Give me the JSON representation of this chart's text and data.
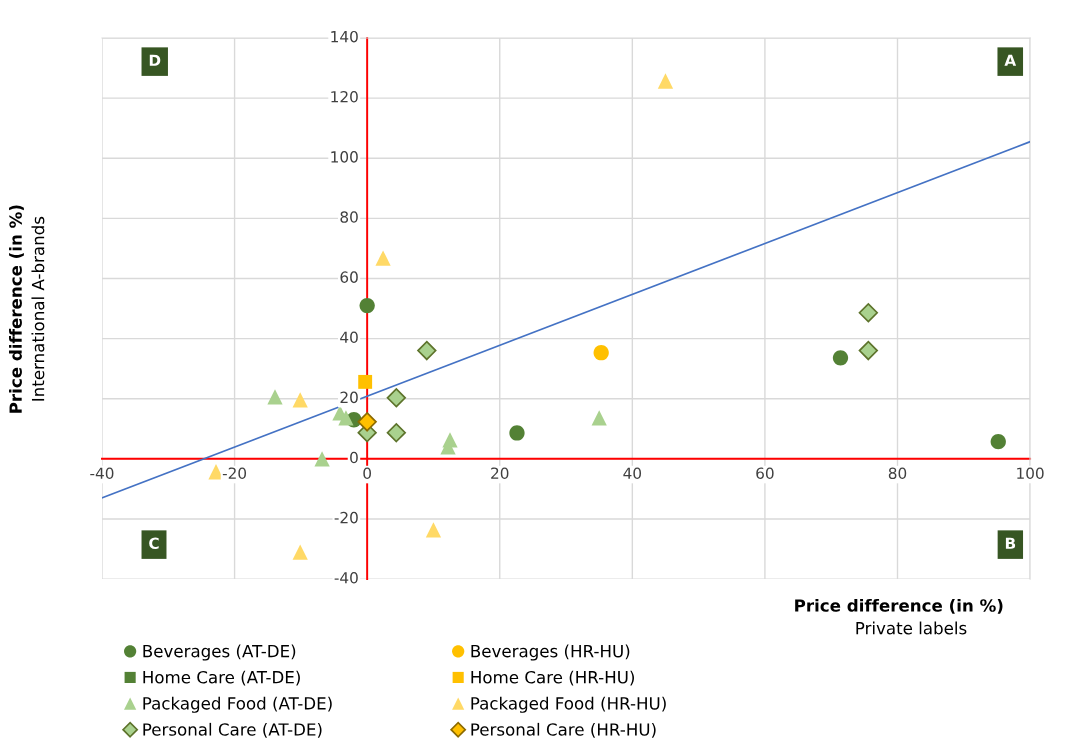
{
  "chart_data": {
    "type": "scatter",
    "xlabel": "Price difference (in %)",
    "ylabel": "Price difference (in %)",
    "annotations": [
      "A",
      "B",
      "C",
      "D",
      "Private labels",
      "International A-brands"
    ],
    "xlim": [
      -40,
      100
    ],
    "xticks": [
      -40,
      -20,
      0,
      20,
      40,
      60,
      80,
      100
    ],
    "ylim": [
      -40,
      140
    ],
    "yticks": [
      -40,
      -20,
      0,
      20,
      40,
      60,
      80,
      100,
      120,
      140
    ],
    "grid": true,
    "legend": "bottom",
    "series": [
      {
        "name": "Beverages (AT-DE)",
        "color": "#538135",
        "marker": "circle",
        "x": [
          0,
          -2,
          22.6,
          71.4,
          95.2
        ],
        "values": [
          51,
          13,
          8.6,
          33.6,
          5.7
        ]
      },
      {
        "name": "Beverages (HR-HU)",
        "color": "#ffc000",
        "marker": "circle",
        "x": [
          35.3
        ],
        "values": [
          35.3
        ]
      },
      {
        "name": "Home Care (AT-DE)",
        "color": "#538135",
        "marker": "square"
      },
      {
        "name": "Home Care (HR-HU)",
        "color": "#ffc000",
        "marker": "square",
        "x": [
          -0.3
        ],
        "values": [
          25.6
        ]
      },
      {
        "name": "Packaged Food (AT-DE)",
        "color": "#a9d18e",
        "marker": "triangle",
        "x": [
          -13.9,
          -4.1,
          -3.2,
          -6.8,
          12.5,
          12.2,
          35
        ],
        "values": [
          20.6,
          15.3,
          13.6,
          0,
          6.3,
          4,
          13.6
        ]
      },
      {
        "name": "Packaged Food (HR-HU)",
        "color": "#ffd966",
        "marker": "triangle",
        "x": [
          45,
          2.4,
          -10.1,
          -22.8,
          -10.1,
          10
        ],
        "values": [
          125.7,
          66.8,
          19.6,
          -4.3,
          -31,
          -23.6
        ]
      },
      {
        "name": "Personal Care (AT-DE)",
        "color": "#a9d18e",
        "marker": "diamond",
        "x": [
          9,
          4.4,
          4.4,
          0,
          75.6,
          75.6
        ],
        "values": [
          36,
          20.3,
          8.7,
          8.7,
          48.6,
          36
        ]
      },
      {
        "name": "Personal Care (HR-HU)",
        "color": "#ffc000",
        "marker": "diamond",
        "x": [
          0
        ],
        "values": [
          12.3
        ]
      },
      {
        "type": "line",
        "color": "#4472c4",
        "marker": "none",
        "x": [
          -40,
          100
        ],
        "values": [
          -13,
          105.5
        ]
      }
    ]
  }
}
